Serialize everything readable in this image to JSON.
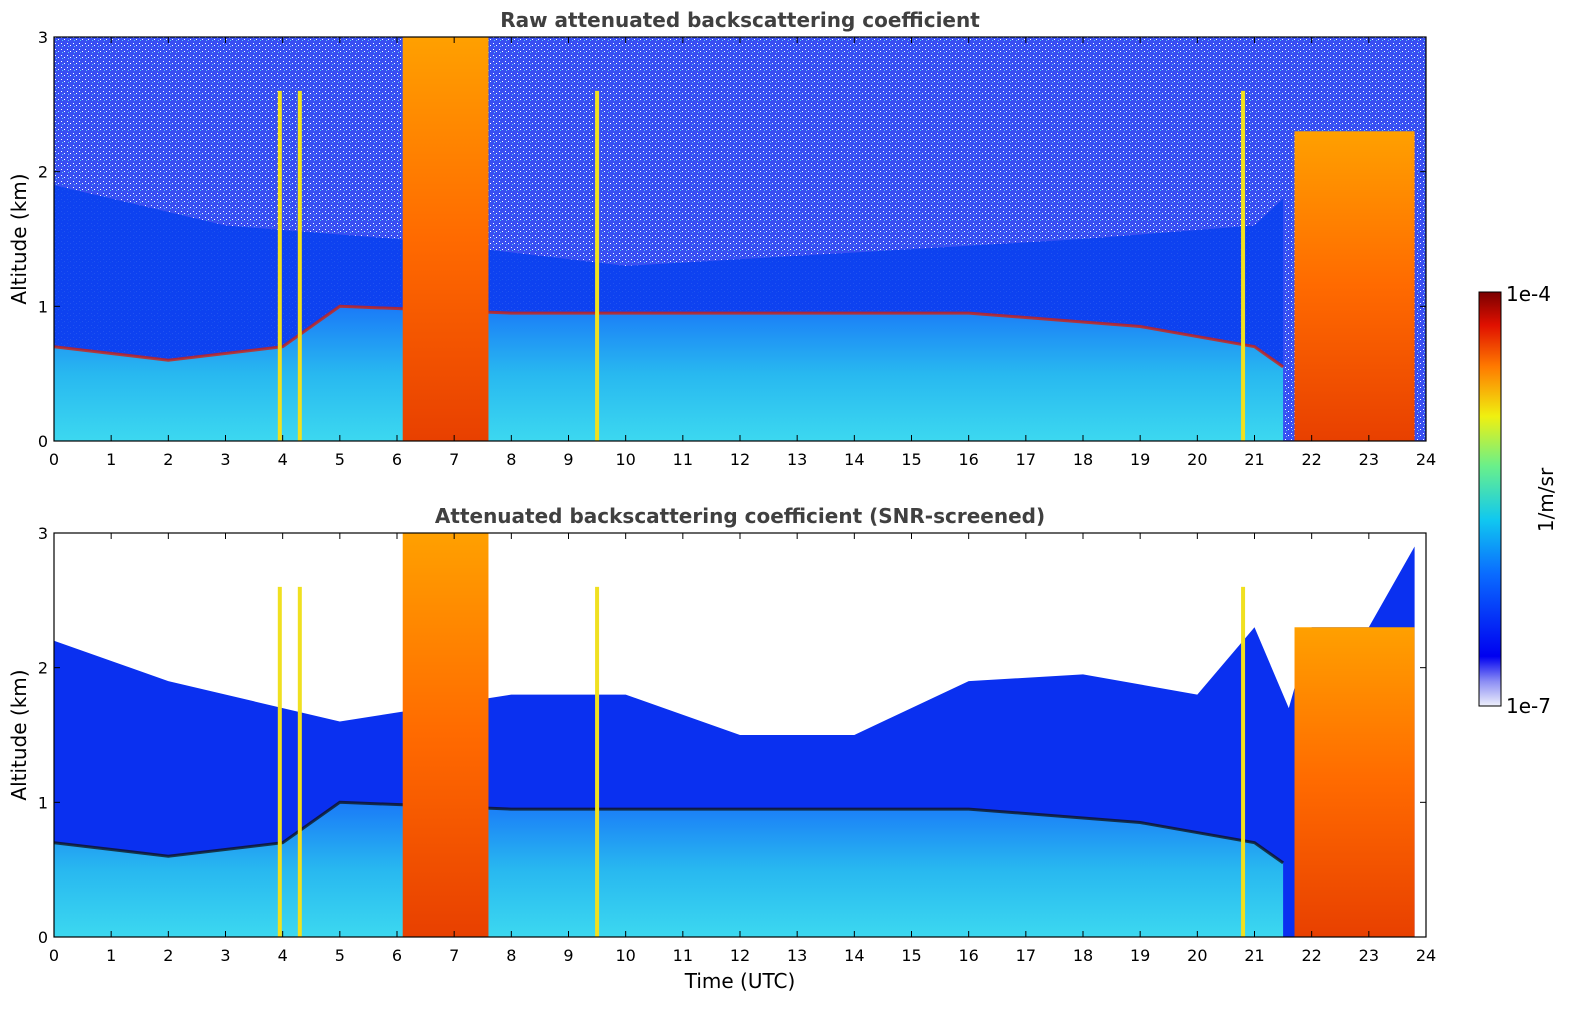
{
  "chart_data": [
    {
      "type": "heatmap",
      "title": "Raw attenuated backscattering coefficient",
      "xlabel": "",
      "ylabel": "Altitude (km)",
      "xlim": [
        0,
        24
      ],
      "ylim": [
        0,
        3
      ],
      "x_ticks": [
        "0",
        "1",
        "2",
        "3",
        "4",
        "5",
        "6",
        "7",
        "8",
        "9",
        "10",
        "11",
        "12",
        "13",
        "14",
        "15",
        "16",
        "17",
        "18",
        "19",
        "20",
        "21",
        "22",
        "23",
        "24"
      ],
      "y_ticks": [
        "0",
        "1",
        "2",
        "3"
      ],
      "colormap": "jet",
      "features": {
        "boundary_layer_top_km": [
          [
            0,
            0.7
          ],
          [
            2,
            0.6
          ],
          [
            4,
            0.7
          ],
          [
            5,
            1.0
          ],
          [
            8,
            0.95
          ],
          [
            12,
            0.95
          ],
          [
            16,
            0.95
          ],
          [
            19,
            0.85
          ],
          [
            21,
            0.7
          ],
          [
            21.5,
            0.55
          ]
        ],
        "thick_cloud_intervals_hr": [
          [
            6.1,
            7.6
          ],
          [
            21.7,
            23.8
          ]
        ],
        "thin_streaks_hr": [
          3.95,
          4.3,
          9.5,
          20.8
        ]
      }
    },
    {
      "type": "heatmap",
      "title": "Attenuated backscattering coefficient (SNR-screened)",
      "xlabel": "Time (UTC)",
      "ylabel": "Altitude (km)",
      "xlim": [
        0,
        24
      ],
      "ylim": [
        0,
        3
      ],
      "x_ticks": [
        "0",
        "1",
        "2",
        "3",
        "4",
        "5",
        "6",
        "7",
        "8",
        "9",
        "10",
        "11",
        "12",
        "13",
        "14",
        "15",
        "16",
        "17",
        "18",
        "19",
        "20",
        "21",
        "22",
        "23",
        "24"
      ],
      "y_ticks": [
        "0",
        "1",
        "2",
        "3"
      ],
      "colormap": "jet",
      "features": {
        "screened_top_km": [
          [
            0,
            2.2
          ],
          [
            2,
            1.9
          ],
          [
            4,
            1.7
          ],
          [
            5,
            1.6
          ],
          [
            8,
            1.8
          ],
          [
            10,
            1.8
          ],
          [
            12,
            1.5
          ],
          [
            14,
            1.5
          ],
          [
            16,
            1.9
          ],
          [
            18,
            1.95
          ],
          [
            20,
            1.8
          ],
          [
            21,
            2.3
          ],
          [
            21.6,
            1.7
          ],
          [
            22,
            2.3
          ],
          [
            23,
            2.3
          ],
          [
            23.8,
            2.9
          ]
        ]
      }
    }
  ],
  "colorbar": {
    "label": "1/m/sr",
    "max_label": "1e-4",
    "min_label": "1e-7",
    "range": [
      1e-07,
      0.0001
    ],
    "scale": "log"
  },
  "colors": {
    "title": "#404040",
    "background_blue": "#0a3cf0",
    "boundary_layer": "#30c8f0"
  }
}
